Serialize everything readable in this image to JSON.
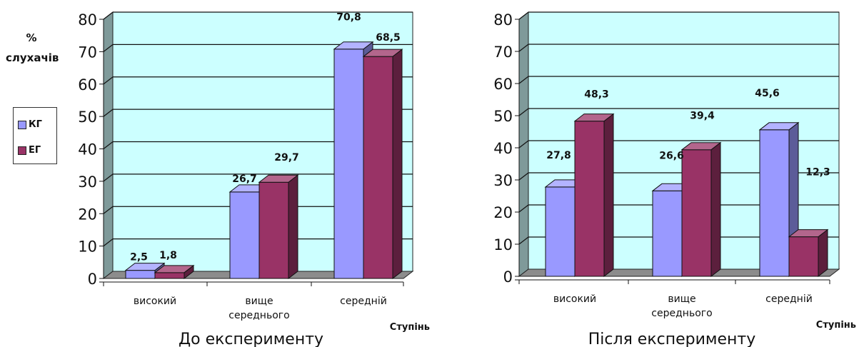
{
  "colors": {
    "kg": "#9999FF",
    "eg": "#993366",
    "plot_bg": "#CCFFFF"
  },
  "left_panel": {
    "ylabel_line1": "%",
    "ylabel_line2": "слухачів"
  },
  "legend": [
    {
      "key": "kg",
      "label": "КГ"
    },
    {
      "key": "eg",
      "label": "ЕГ"
    }
  ],
  "chart_data": [
    {
      "type": "bar",
      "title": "До експерименту",
      "xlabel": "Ступінь",
      "ylabel": "% слухачів",
      "categories": [
        "високий",
        "вище середнього",
        "середній"
      ],
      "category_lines": [
        [
          "високий"
        ],
        [
          "вище",
          "середнього"
        ],
        [
          "середній"
        ]
      ],
      "series": [
        {
          "name": "КГ",
          "values": [
            2.5,
            26.7,
            70.8
          ]
        },
        {
          "name": "ЕГ",
          "values": [
            1.8,
            29.7,
            68.5
          ]
        }
      ],
      "data_labels": [
        [
          "2,5",
          "26,7",
          "70,8"
        ],
        [
          "1,8",
          "29,7",
          "68,5"
        ]
      ],
      "ylim": [
        0,
        80
      ],
      "yticks": [
        0,
        10,
        20,
        30,
        40,
        50,
        60,
        70,
        80
      ],
      "grid": true,
      "legend_position": "left"
    },
    {
      "type": "bar",
      "title": "Після експерименту",
      "xlabel": "Ступінь",
      "categories": [
        "високий",
        "вище середнього",
        "середній"
      ],
      "category_lines": [
        [
          "високий"
        ],
        [
          "вище",
          "середнього"
        ],
        [
          "середній"
        ]
      ],
      "series": [
        {
          "name": "КГ",
          "values": [
            27.8,
            26.6,
            45.6
          ]
        },
        {
          "name": "ЕГ",
          "values": [
            48.3,
            39.4,
            12.3
          ]
        }
      ],
      "data_labels": [
        [
          "27,8",
          "26,6",
          "45,6"
        ],
        [
          "48,3",
          "39,4",
          "12,3"
        ]
      ],
      "ylim": [
        0,
        80
      ],
      "yticks": [
        0,
        10,
        20,
        30,
        40,
        50,
        60,
        70,
        80
      ],
      "grid": true
    }
  ]
}
